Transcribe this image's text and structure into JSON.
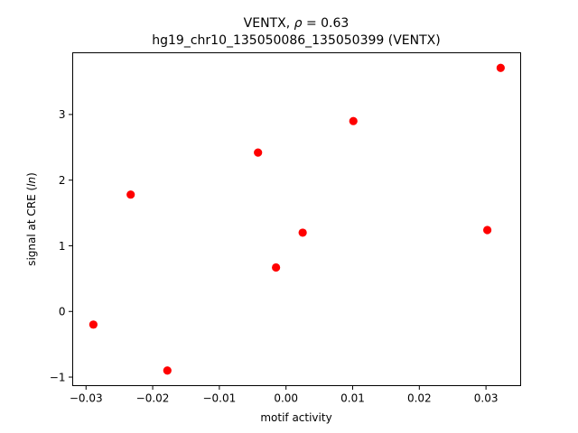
{
  "chart_data": {
    "type": "scatter",
    "title_prefix": "VENTX, ",
    "title_rho_symbol": "ρ",
    "title_rho_value": " = 0.63",
    "subtitle": "hg19_chr10_135050086_135050399 (VENTX)",
    "xlabel": "motif activity",
    "ylabel_prefix": "signal at CRE (",
    "ylabel_italic": "ln",
    "ylabel_suffix": ")",
    "xlim": [
      -0.032,
      0.0352
    ],
    "ylim": [
      -1.13,
      3.94
    ],
    "xticks": [
      {
        "value": -0.03,
        "label": "−0.03"
      },
      {
        "value": -0.02,
        "label": "−0.02"
      },
      {
        "value": -0.01,
        "label": "−0.01"
      },
      {
        "value": 0.0,
        "label": "0.00"
      },
      {
        "value": 0.01,
        "label": "0.01"
      },
      {
        "value": 0.02,
        "label": "0.02"
      },
      {
        "value": 0.03,
        "label": "0.03"
      }
    ],
    "yticks": [
      {
        "value": -1,
        "label": "−1"
      },
      {
        "value": 0,
        "label": "0"
      },
      {
        "value": 1,
        "label": "1"
      },
      {
        "value": 2,
        "label": "2"
      },
      {
        "value": 3,
        "label": "3"
      }
    ],
    "marker_color": "#ff0000",
    "grid": false,
    "points": [
      {
        "x": -0.0289,
        "y": -0.2
      },
      {
        "x": -0.0233,
        "y": 1.78
      },
      {
        "x": -0.0178,
        "y": -0.9
      },
      {
        "x": -0.0042,
        "y": 2.42
      },
      {
        "x": -0.0015,
        "y": 0.67
      },
      {
        "x": 0.0025,
        "y": 1.2
      },
      {
        "x": 0.0101,
        "y": 2.9
      },
      {
        "x": 0.0302,
        "y": 1.24
      },
      {
        "x": 0.0322,
        "y": 3.71
      }
    ]
  }
}
